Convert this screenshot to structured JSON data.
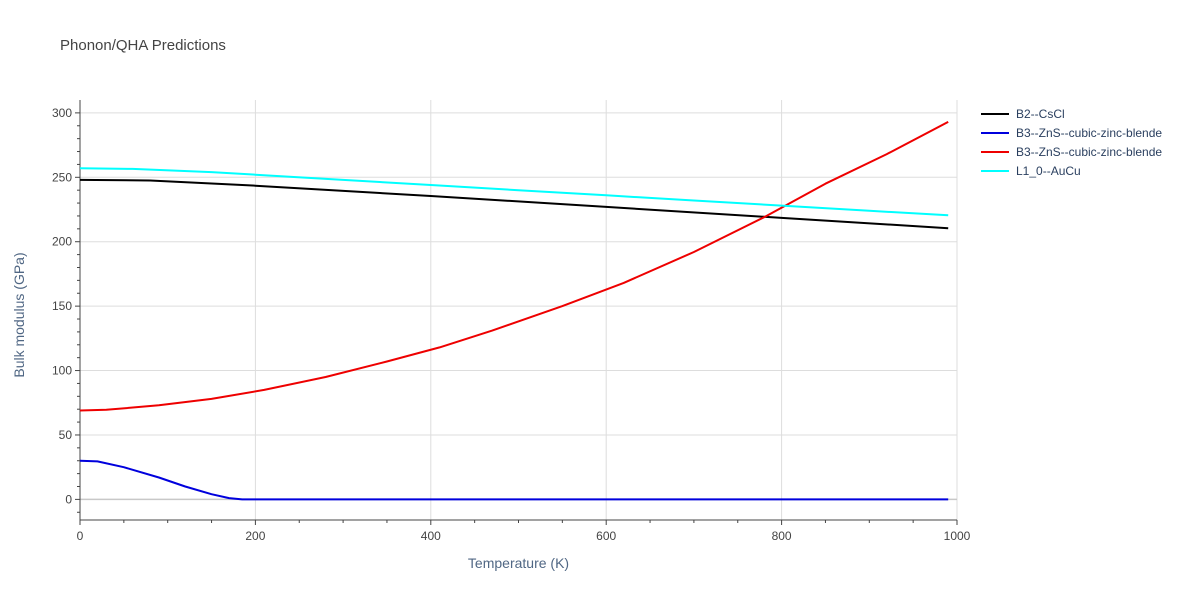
{
  "chart_data": {
    "type": "line",
    "title": "Phonon/QHA Predictions",
    "xlabel": "Temperature (K)",
    "ylabel": "Bulk modulus (GPa)",
    "xlim": [
      0,
      1000
    ],
    "ylim": [
      -16,
      310
    ],
    "xticks": [
      0,
      200,
      400,
      600,
      800,
      1000
    ],
    "yticks": [
      0,
      50,
      100,
      150,
      200,
      250,
      300
    ],
    "grid": true,
    "legend_position": "top-right outside",
    "series": [
      {
        "name": "B2--CsCl",
        "color": "#000000",
        "x": [
          0,
          80,
          200,
          400,
          600,
          800,
          990
        ],
        "y": [
          248,
          247.5,
          243.5,
          235.5,
          227,
          218.5,
          210.5
        ]
      },
      {
        "name": "B3--ZnS--cubic-zinc-blende",
        "color": "#0000dd",
        "x": [
          0,
          20,
          50,
          90,
          120,
          150,
          170,
          185,
          200,
          300,
          500,
          800,
          990
        ],
        "y": [
          30,
          29.5,
          25,
          17,
          10,
          4,
          1,
          0,
          0,
          0,
          0,
          0,
          0
        ]
      },
      {
        "name": "B3--ZnS--cubic-zinc-blende",
        "color": "#ee0000",
        "x": [
          0,
          30,
          90,
          150,
          210,
          280,
          350,
          410,
          470,
          550,
          620,
          700,
          780,
          850,
          920,
          990
        ],
        "y": [
          69,
          69.5,
          73,
          78,
          85,
          95,
          107,
          118,
          131,
          150,
          168,
          192,
          219,
          245,
          268,
          293
        ]
      },
      {
        "name": "L1_0--AuCu",
        "color": "#00ffff",
        "x": [
          0,
          60,
          150,
          200,
          300,
          400,
          500,
          600,
          700,
          800,
          900,
          990
        ],
        "y": [
          257,
          256.5,
          254,
          252,
          248,
          244,
          240,
          236,
          232,
          228,
          224,
          220.5
        ]
      }
    ]
  }
}
